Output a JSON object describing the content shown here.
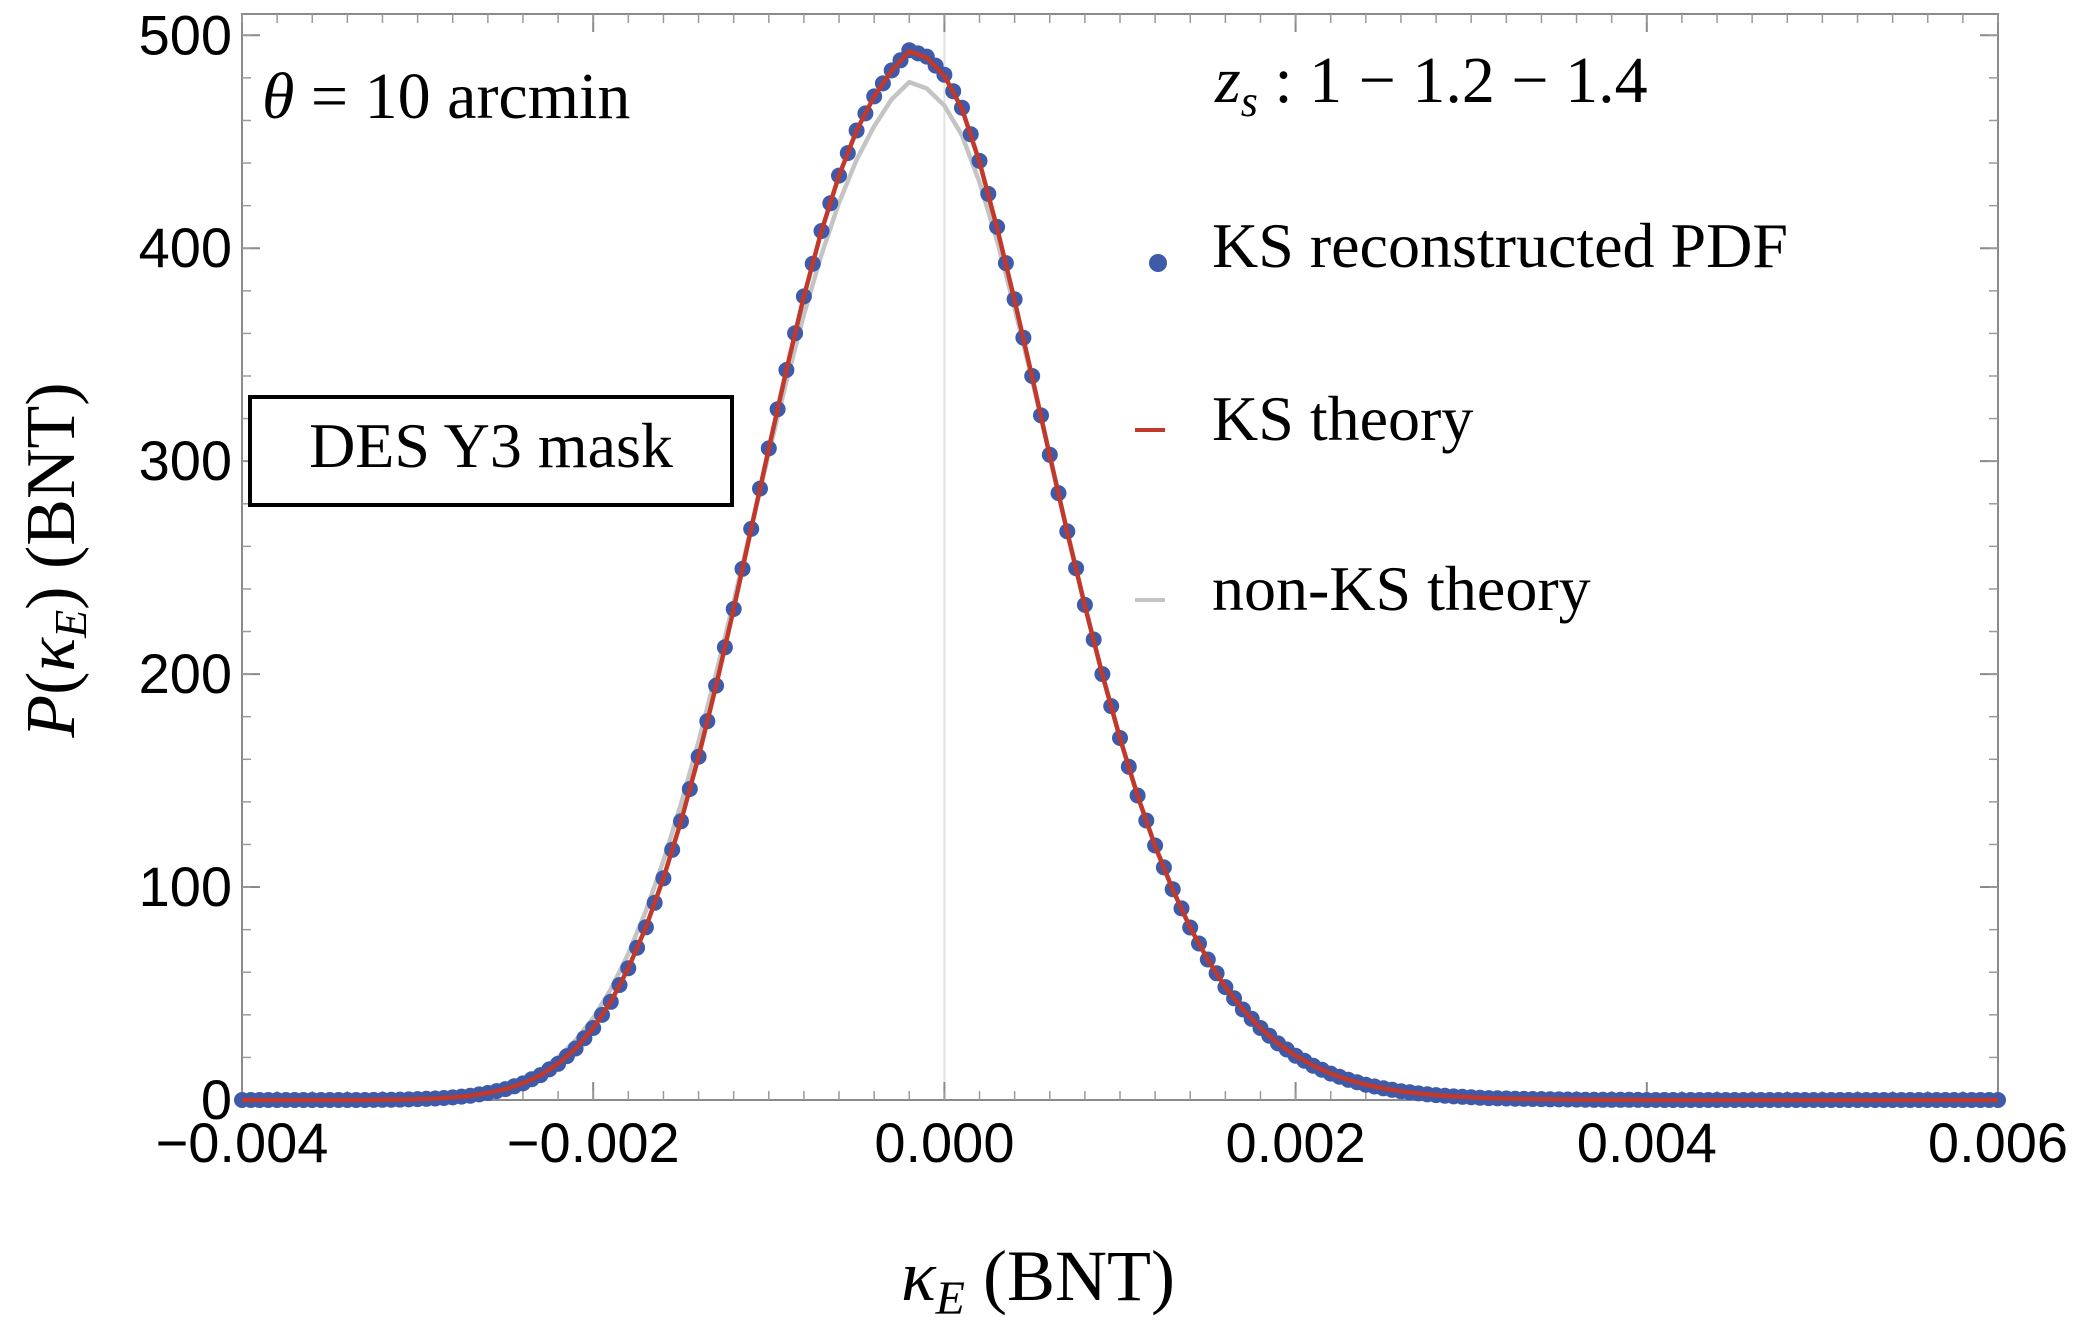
{
  "chart_data": {
    "type": "line",
    "xlabel": "κ_E (BNT)",
    "ylabel": "P(κ_E) (BNT)",
    "xlim": [
      -0.004,
      0.006
    ],
    "ylim": [
      0,
      510
    ],
    "x_ticks": [
      -0.004,
      -0.002,
      0.0,
      0.002,
      0.004,
      0.006
    ],
    "x_tick_labels": [
      "−0.004",
      "−0.002",
      "0.000",
      "0.002",
      "0.004",
      "0.006"
    ],
    "y_ticks": [
      0,
      100,
      200,
      300,
      400,
      500
    ],
    "y_tick_labels": [
      "0",
      "100",
      "200",
      "300",
      "400",
      "500"
    ],
    "annotations": {
      "theta": "θ = 10 arcmin",
      "zs": "z_s : 1 − 1.2 − 1.4",
      "mask": "DES Y3 mask"
    },
    "legend_position": "right",
    "series": [
      {
        "name": "KS reconstructed PDF",
        "kind": "points",
        "color": "#3f5aa8",
        "x": [
          -0.004,
          -0.0039,
          -0.0038,
          -0.0037,
          -0.0036,
          -0.0035,
          -0.0034,
          -0.0033,
          -0.0032,
          -0.0031,
          -0.003,
          -0.0029,
          -0.0028,
          -0.0027,
          -0.0026,
          -0.0025,
          -0.0024,
          -0.0023,
          -0.0022,
          -0.0021,
          -0.002,
          -0.0019,
          -0.0018,
          -0.0017,
          -0.0016,
          -0.0015,
          -0.0014,
          -0.0013,
          -0.0012,
          -0.0011,
          -0.001,
          -0.0009,
          -0.0008,
          -0.0007,
          -0.0006,
          -0.0005,
          -0.0004,
          -0.0003,
          -0.0002,
          -0.0001,
          0.0,
          0.0001,
          0.0002,
          0.0003,
          0.0004,
          0.0005,
          0.0006,
          0.0007,
          0.0008,
          0.0009,
          0.001,
          0.0011,
          0.0012,
          0.0013,
          0.0014,
          0.0015,
          0.0016,
          0.0017,
          0.0018,
          0.0019,
          0.002,
          0.0021,
          0.0022,
          0.0023,
          0.0024,
          0.0025,
          0.0026,
          0.0027,
          0.0028,
          0.0029,
          0.003,
          0.0031,
          0.0032,
          0.0033,
          0.0034,
          0.0035,
          0.0036,
          0.0037,
          0.0038,
          0.0039,
          0.004,
          0.0041,
          0.0042,
          0.0043,
          0.0044,
          0.0045,
          0.0046,
          0.0047,
          0.0048,
          0.0049,
          0.005,
          0.0051,
          0.0052,
          0.0053,
          0.0054,
          0.0055,
          0.0056,
          0.0057,
          0.0058,
          0.0059,
          0.006
        ],
        "y": [
          0,
          0,
          0,
          0,
          0,
          0,
          0,
          0,
          0.1,
          0.2,
          0.4,
          0.7,
          1.2,
          2.0,
          3.3,
          5.1,
          7.8,
          11.7,
          17.0,
          24.2,
          33.8,
          46.1,
          61.9,
          81.1,
          104.1,
          130.9,
          161.2,
          194.6,
          230.6,
          268.2,
          306.0,
          342.8,
          377.4,
          408.1,
          434.1,
          455.3,
          471.3,
          483.5,
          493.0,
          490.0,
          481.5,
          466.0,
          441.0,
          410.0,
          376.0,
          340.0,
          303.0,
          267.0,
          232.5,
          200.0,
          170.0,
          143.0,
          119.5,
          99.0,
          81.0,
          66.0,
          53.0,
          42.5,
          33.8,
          26.6,
          20.8,
          16.1,
          12.4,
          9.5,
          7.2,
          5.5,
          4.1,
          3.1,
          2.3,
          1.7,
          1.3,
          0.9,
          0.7,
          0.5,
          0.4,
          0.3,
          0.2,
          0.1,
          0.1,
          0.1,
          0,
          0,
          0,
          0,
          0,
          0,
          0,
          0,
          0,
          0,
          0,
          0,
          0,
          0,
          0,
          0,
          0,
          0,
          0,
          0,
          0
        ]
      },
      {
        "name": "KS theory",
        "kind": "line",
        "color": "#c0392b",
        "x": [
          -0.004,
          -0.0039,
          -0.0038,
          -0.0037,
          -0.0036,
          -0.0035,
          -0.0034,
          -0.0033,
          -0.0032,
          -0.0031,
          -0.003,
          -0.0029,
          -0.0028,
          -0.0027,
          -0.0026,
          -0.0025,
          -0.0024,
          -0.0023,
          -0.0022,
          -0.0021,
          -0.002,
          -0.0019,
          -0.0018,
          -0.0017,
          -0.0016,
          -0.0015,
          -0.0014,
          -0.0013,
          -0.0012,
          -0.0011,
          -0.001,
          -0.0009,
          -0.0008,
          -0.0007,
          -0.0006,
          -0.0005,
          -0.0004,
          -0.0003,
          -0.0002,
          -0.0001,
          0.0,
          0.0001,
          0.0002,
          0.0003,
          0.0004,
          0.0005,
          0.0006,
          0.0007,
          0.0008,
          0.0009,
          0.001,
          0.0011,
          0.0012,
          0.0013,
          0.0014,
          0.0015,
          0.0016,
          0.0017,
          0.0018,
          0.0019,
          0.002,
          0.0021,
          0.0022,
          0.0023,
          0.0024,
          0.0025,
          0.0026,
          0.0027,
          0.0028,
          0.0029,
          0.003,
          0.0031,
          0.0032,
          0.0033,
          0.0034,
          0.0035,
          0.0036,
          0.0037,
          0.0038,
          0.0039,
          0.004,
          0.0041,
          0.0042,
          0.0043,
          0.0044,
          0.0045,
          0.0046,
          0.0047,
          0.0048,
          0.0049,
          0.005,
          0.0051,
          0.0052,
          0.0053,
          0.0054,
          0.0055,
          0.0056,
          0.0057,
          0.0058,
          0.0059,
          0.006
        ],
        "y": [
          0,
          0,
          0,
          0,
          0,
          0,
          0,
          0,
          0.1,
          0.2,
          0.4,
          0.7,
          1.2,
          2.0,
          3.3,
          5.1,
          7.8,
          11.7,
          17.0,
          24.2,
          33.8,
          46.1,
          61.9,
          81.1,
          104.1,
          130.9,
          161.2,
          194.6,
          230.6,
          268.2,
          306.0,
          342.8,
          377.4,
          408.1,
          434.1,
          455.3,
          471.3,
          483.5,
          492.5,
          489.5,
          481.0,
          465.5,
          440.5,
          409.5,
          375.5,
          339.5,
          302.5,
          266.5,
          232.0,
          199.7,
          169.8,
          142.8,
          119.3,
          98.8,
          80.9,
          65.9,
          53.0,
          42.5,
          33.8,
          26.6,
          20.8,
          16.1,
          12.4,
          9.5,
          7.2,
          5.5,
          4.1,
          3.1,
          2.3,
          1.7,
          1.3,
          0.9,
          0.7,
          0.5,
          0.4,
          0.3,
          0.2,
          0.1,
          0.1,
          0.1,
          0,
          0,
          0,
          0,
          0,
          0,
          0,
          0,
          0,
          0,
          0,
          0,
          0,
          0,
          0,
          0,
          0,
          0,
          0,
          0,
          0
        ]
      },
      {
        "name": "non-KS theory",
        "kind": "line",
        "color": "#c4c4c4",
        "x": [
          -0.004,
          -0.0039,
          -0.0038,
          -0.0037,
          -0.0036,
          -0.0035,
          -0.0034,
          -0.0033,
          -0.0032,
          -0.0031,
          -0.003,
          -0.0029,
          -0.0028,
          -0.0027,
          -0.0026,
          -0.0025,
          -0.0024,
          -0.0023,
          -0.0022,
          -0.0021,
          -0.002,
          -0.0019,
          -0.0018,
          -0.0017,
          -0.0016,
          -0.0015,
          -0.0014,
          -0.0013,
          -0.0012,
          -0.0011,
          -0.001,
          -0.0009,
          -0.0008,
          -0.0007,
          -0.0006,
          -0.0005,
          -0.0004,
          -0.0003,
          -0.0002,
          -0.0001,
          0.0,
          0.0001,
          0.0002,
          0.0003,
          0.0004,
          0.0005,
          0.0006,
          0.0007,
          0.0008,
          0.0009,
          0.001,
          0.0011,
          0.0012,
          0.0013,
          0.0014,
          0.0015,
          0.0016,
          0.0017,
          0.0018,
          0.0019,
          0.002,
          0.0021,
          0.0022,
          0.0023,
          0.0024,
          0.0025,
          0.0026,
          0.0027,
          0.0028,
          0.0029,
          0.003,
          0.0031,
          0.0032,
          0.0033,
          0.0034,
          0.0035,
          0.0036,
          0.0037,
          0.0038,
          0.0039,
          0.004,
          0.0041,
          0.0042,
          0.0043,
          0.0044,
          0.0045,
          0.0046,
          0.0047,
          0.0048,
          0.0049,
          0.005,
          0.0051,
          0.0052,
          0.0053,
          0.0054,
          0.0055,
          0.0056,
          0.0057,
          0.0058,
          0.0059,
          0.006
        ],
        "y": [
          0,
          0,
          0,
          0,
          0,
          0,
          0,
          0,
          0.1,
          0.2,
          0.5,
          0.9,
          1.5,
          2.5,
          4.0,
          6.2,
          9.4,
          13.9,
          20.0,
          28.0,
          38.5,
          52.0,
          68.7,
          88.8,
          112.3,
          139.0,
          168.4,
          200.3,
          234.1,
          268.9,
          303.6,
          337.4,
          368.9,
          397.0,
          421.4,
          441.6,
          457.3,
          470.0,
          478.0,
          475.0,
          467.0,
          453.0,
          431.0,
          403.5,
          372.0,
          338.0,
          302.5,
          267.0,
          232.5,
          200.0,
          170.0,
          143.0,
          119.5,
          99.0,
          81.0,
          66.0,
          53.0,
          42.5,
          33.8,
          26.6,
          20.8,
          16.1,
          12.4,
          9.5,
          7.2,
          5.5,
          4.1,
          3.1,
          2.3,
          1.7,
          1.3,
          0.9,
          0.7,
          0.5,
          0.4,
          0.3,
          0.2,
          0.1,
          0.1,
          0.1,
          0,
          0,
          0,
          0,
          0,
          0,
          0,
          0,
          0,
          0,
          0,
          0,
          0,
          0,
          0,
          0,
          0,
          0,
          0,
          0,
          0
        ]
      }
    ]
  }
}
